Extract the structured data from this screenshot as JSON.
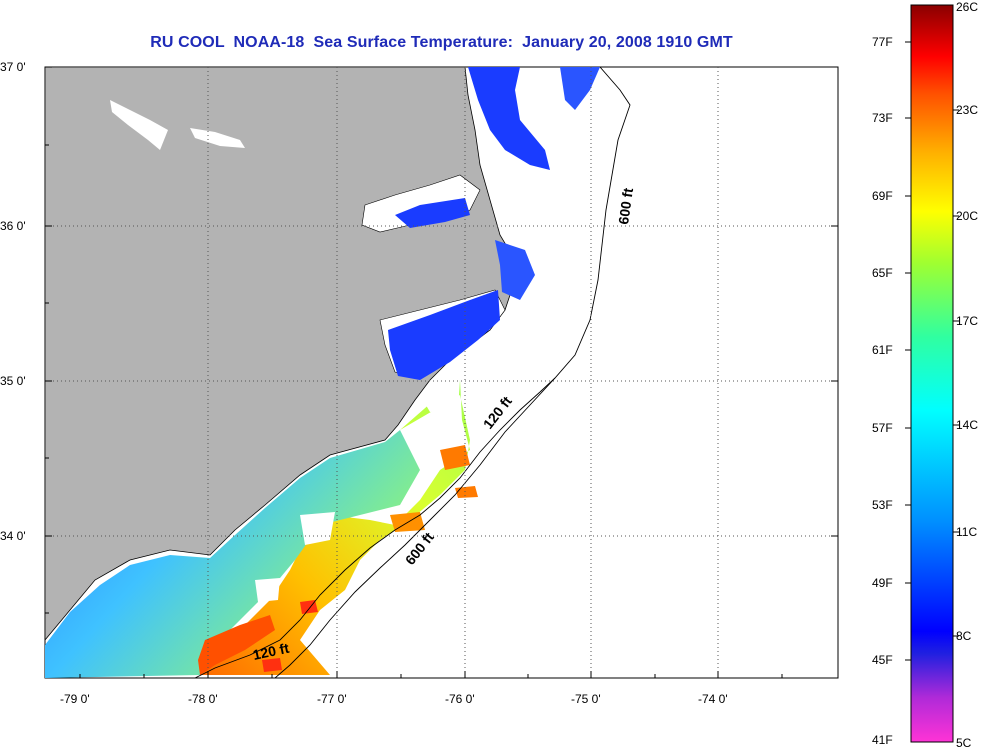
{
  "title": "RU COOL  NOAA-18  Sea Surface Temperature:  January 20, 2008 1910 GMT",
  "map": {
    "lat_labels": [
      {
        "value": 37.0,
        "label": "37 0'"
      },
      {
        "value": 36.0,
        "label": "36 0'"
      },
      {
        "value": 35.0,
        "label": "35 0'"
      },
      {
        "value": 34.0,
        "label": "34 0'"
      }
    ],
    "lon_labels": [
      {
        "value": -79.0,
        "label": "-79 0'"
      },
      {
        "value": -78.0,
        "label": "-78 0'"
      },
      {
        "value": -77.0,
        "label": "-77 0'"
      },
      {
        "value": -76.0,
        "label": "-76 0'"
      },
      {
        "value": -75.0,
        "label": "-75 0'"
      },
      {
        "value": -74.0,
        "label": "-74 0'"
      }
    ],
    "lon_range": [
      -79.3,
      -73.0
    ],
    "lat_range": [
      33.1,
      37.0
    ],
    "contour_labels": [
      {
        "text": "600 ft"
      },
      {
        "text": "120 ft"
      },
      {
        "text": "600 ft"
      },
      {
        "text": "120 ft"
      }
    ],
    "colors": {
      "land": "#b3b3b3",
      "no_data": "#ffffff",
      "title": "#1f2bb8"
    }
  },
  "colorbar": {
    "fahrenheit_labels": [
      "77F",
      "73F",
      "69F",
      "65F",
      "61F",
      "57F",
      "53F",
      "49F",
      "45F",
      "41F"
    ],
    "celsius_labels": [
      "26C",
      "23C",
      "20C",
      "17C",
      "14C",
      "11C",
      "8C",
      "5C"
    ],
    "range_c": [
      5,
      26
    ]
  }
}
